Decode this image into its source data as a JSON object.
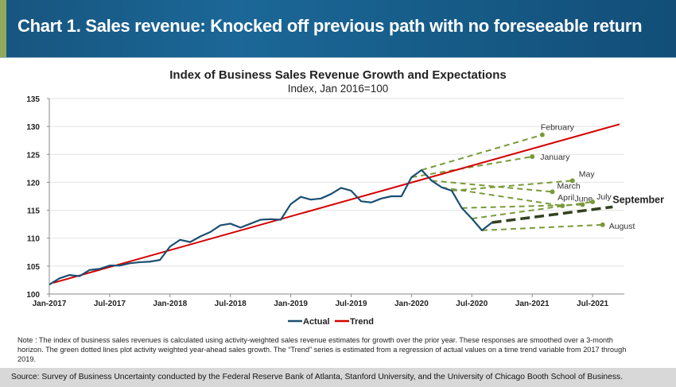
{
  "header": {
    "title": "Chart 1. Sales revenue: Knocked off previous path with no foreseeable return"
  },
  "colors": {
    "header_bg": "#1b6797",
    "accent": "#8fa85a",
    "actual": "#1b4f72",
    "trend": "#d40000",
    "expectation": "#7a9a3a",
    "latest_expectation": "#34411f",
    "source_bg": "#d8d8d8"
  },
  "chart_data": {
    "type": "line",
    "title": "Index of Business Sales Revenue Growth and Expectations",
    "subtitle": "Index, Jan 2016=100",
    "xlabel": "",
    "ylabel": "",
    "ylim": [
      100,
      135
    ],
    "yticks": [
      100,
      105,
      110,
      115,
      120,
      125,
      130,
      135
    ],
    "xlim": [
      "2017-01",
      "2021-10"
    ],
    "xticks": [
      {
        "date": "2017-01",
        "label": "Jan-2017"
      },
      {
        "date": "2017-07",
        "label": "Jul-2017"
      },
      {
        "date": "2018-01",
        "label": "Jan-2018"
      },
      {
        "date": "2018-07",
        "label": "Jul-2018"
      },
      {
        "date": "2019-01",
        "label": "Jan-2019"
      },
      {
        "date": "2019-07",
        "label": "Jul-2019"
      },
      {
        "date": "2020-01",
        "label": "Jan-2020"
      },
      {
        "date": "2020-07",
        "label": "Jul-2020"
      },
      {
        "date": "2021-01",
        "label": "Jan-2021"
      },
      {
        "date": "2021-07",
        "label": "Jul-2021"
      }
    ],
    "grid": "horizontal",
    "legend": {
      "placement": "bottom",
      "entries": [
        "Actual",
        "Trend"
      ]
    },
    "series": [
      {
        "name": "Actual",
        "start": "2017-01",
        "values": [
          101.7,
          102.8,
          103.4,
          103.2,
          104.3,
          104.5,
          105.1,
          105.1,
          105.5,
          105.7,
          105.8,
          106.1,
          108.5,
          109.7,
          109.3,
          110.3,
          111.1,
          112.3,
          112.6,
          111.9,
          112.6,
          113.3,
          113.4,
          113.3,
          116.1,
          117.4,
          116.9,
          117.1,
          117.9,
          119.0,
          118.5,
          116.6,
          116.4,
          117.1,
          117.5,
          117.5,
          120.9,
          122.2,
          120.3,
          119.1,
          118.5,
          115.4,
          113.5,
          111.4,
          112.8
        ]
      },
      {
        "name": "Trend",
        "points": [
          {
            "x": "2017-01",
            "y": 102.0
          },
          {
            "x": "2021-10",
            "y": 130.4
          }
        ]
      }
    ],
    "expectations": [
      {
        "label": "January",
        "from": {
          "x": "2020-01",
          "y": 120.9
        },
        "to": {
          "x": "2021-01",
          "y": 124.6
        }
      },
      {
        "label": "February",
        "from": {
          "x": "2020-02",
          "y": 122.2
        },
        "to": {
          "x": "2021-02",
          "y": 128.5
        }
      },
      {
        "label": "March",
        "from": {
          "x": "2020-03",
          "y": 120.3
        },
        "to": {
          "x": "2021-03",
          "y": 118.3
        }
      },
      {
        "label": "April",
        "from": {
          "x": "2020-04",
          "y": 119.1
        },
        "to": {
          "x": "2021-04",
          "y": 115.8
        }
      },
      {
        "label": "May",
        "from": {
          "x": "2020-05",
          "y": 118.5
        },
        "to": {
          "x": "2021-05",
          "y": 120.3
        }
      },
      {
        "label": "June",
        "from": {
          "x": "2020-06",
          "y": 115.4
        },
        "to": {
          "x": "2021-06",
          "y": 116.0
        }
      },
      {
        "label": "July",
        "from": {
          "x": "2020-07",
          "y": 113.5
        },
        "to": {
          "x": "2021-07",
          "y": 116.5
        }
      },
      {
        "label": "August",
        "from": {
          "x": "2020-08",
          "y": 111.4
        },
        "to": {
          "x": "2021-08",
          "y": 112.4
        }
      },
      {
        "label": "September",
        "from": {
          "x": "2020-09",
          "y": 112.8
        },
        "to": {
          "x": "2021-09",
          "y": 115.6
        },
        "emphasis": true
      }
    ]
  },
  "note": "Note : The index of business sales revenues is calculated using activity-weighted sales revenue estimates for growth over the prior year. These responses are smoothed over a 3-month horizon. The green dotted lines plot activity weighted year-ahead sales growth. The “Trend” series is estimated from a regression of actual values on a time trend variable from 2017 through 2019.",
  "source": "Source: Survey of Business Uncertainty conducted by the Federal Reserve Bank of Atlanta, Stanford University, and the University of Chicago Booth School of Business."
}
